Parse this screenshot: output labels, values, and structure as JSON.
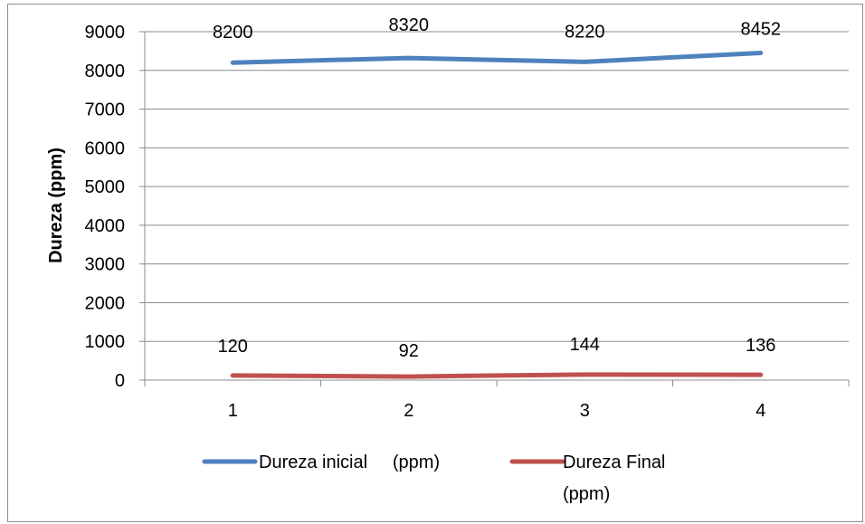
{
  "chart_data": {
    "type": "line",
    "title": "",
    "xlabel": "",
    "ylabel": "Dureza (ppm)",
    "categories": [
      "1",
      "2",
      "3",
      "4"
    ],
    "ylim": [
      0,
      9000
    ],
    "y_ticks": [
      0,
      1000,
      2000,
      3000,
      4000,
      5000,
      6000,
      7000,
      8000,
      9000
    ],
    "grid": "horizontal",
    "legend_position": "bottom",
    "series": [
      {
        "name": "Dureza inicial     (ppm)",
        "color": "#4f81bd",
        "values": [
          8200,
          8320,
          8220,
          8452
        ]
      },
      {
        "name": "Dureza Final (ppm)",
        "color": "#c0504d",
        "values": [
          120,
          92,
          144,
          136
        ]
      }
    ]
  }
}
